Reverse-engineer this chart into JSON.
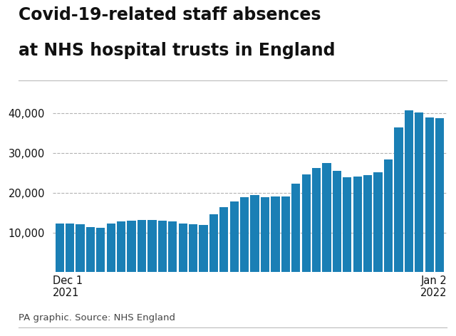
{
  "title_line1": "Covid-19-related staff absences",
  "title_line2": "at NHS hospital trusts in England",
  "source": "PA graphic. Source: NHS England",
  "bar_color": "#1a7fb5",
  "background_color": "#ffffff",
  "values": [
    12300,
    12200,
    12000,
    11400,
    11100,
    12200,
    12700,
    13000,
    13100,
    13100,
    13000,
    12700,
    12300,
    12000,
    11900,
    14500,
    16300,
    17800,
    18800,
    19500,
    18800,
    19000,
    19100,
    22200,
    24700,
    26200,
    27500,
    25600,
    23900,
    24000,
    24400,
    25100,
    28300,
    36500,
    40800,
    40200,
    39000,
    38800
  ],
  "y_ticks": [
    10000,
    20000,
    30000,
    40000
  ],
  "ylim": [
    0,
    44000
  ],
  "title_fontsize": 17,
  "tick_fontsize": 10.5,
  "source_fontsize": 9.5,
  "grid_color": "#aaaaaa",
  "text_color": "#111111",
  "source_color": "#444444",
  "rule_color": "#bbbbbb"
}
